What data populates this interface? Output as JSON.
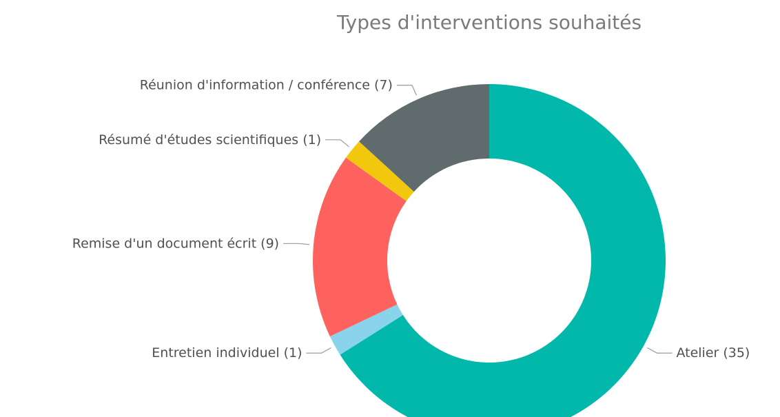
{
  "chart_data": {
    "type": "donut",
    "title": "Types d'interventions souhaités",
    "categories": [
      "Atelier",
      "Entretien individuel",
      "Remise d'un document écrit",
      "Résumé d'études scientifiques",
      "Réunion d'information / conférence"
    ],
    "values": [
      35,
      1,
      9,
      1,
      7
    ],
    "value_labels": [
      "(35)",
      "(1)",
      "(9)",
      "(1)",
      "(7)"
    ],
    "colors": [
      "#01b8aa",
      "#8ad4eb",
      "#fd625e",
      "#f2c80f",
      "#5f6b6d"
    ]
  }
}
